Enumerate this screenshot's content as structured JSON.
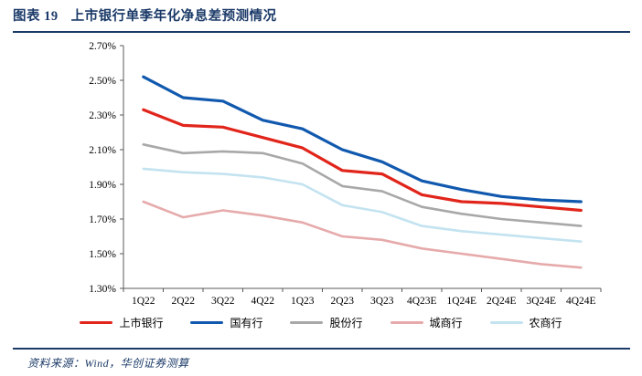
{
  "title": {
    "label": "图表 19",
    "text": "上市银行单季年化净息差预测情况"
  },
  "source_note": "资料来源：Wind，华创证券测算",
  "colors": {
    "accent_navy": "#1b3a68",
    "axis": "#595959",
    "tick_text": "#000000"
  },
  "chart_data": {
    "type": "line",
    "title": "上市银行单季年化净息差预测情况",
    "categories": [
      "1Q22",
      "2Q22",
      "3Q22",
      "4Q22",
      "1Q23",
      "2Q23",
      "3Q23",
      "4Q23E",
      "1Q24E",
      "2Q24E",
      "3Q24E",
      "4Q24E"
    ],
    "series": [
      {
        "name": "上市银行",
        "color": "#e1251b",
        "stroke_width": 3.2,
        "values": [
          2.33,
          2.24,
          2.23,
          2.17,
          2.11,
          1.98,
          1.96,
          1.84,
          1.8,
          1.79,
          1.77,
          1.75
        ]
      },
      {
        "name": "国有行",
        "color": "#1159ae",
        "stroke_width": 3.2,
        "values": [
          2.52,
          2.4,
          2.38,
          2.27,
          2.22,
          2.1,
          2.03,
          1.92,
          1.87,
          1.83,
          1.81,
          1.8
        ]
      },
      {
        "name": "股份行",
        "color": "#a8a8a8",
        "stroke_width": 2.6,
        "values": [
          2.13,
          2.08,
          2.09,
          2.08,
          2.02,
          1.89,
          1.86,
          1.77,
          1.73,
          1.7,
          1.68,
          1.66
        ]
      },
      {
        "name": "城商行",
        "color": "#e6aaab",
        "stroke_width": 2.6,
        "values": [
          1.8,
          1.71,
          1.75,
          1.72,
          1.68,
          1.6,
          1.58,
          1.53,
          1.5,
          1.47,
          1.44,
          1.42
        ]
      },
      {
        "name": "农商行",
        "color": "#c3e3f0",
        "stroke_width": 2.6,
        "values": [
          1.99,
          1.97,
          1.96,
          1.94,
          1.9,
          1.78,
          1.74,
          1.66,
          1.63,
          1.61,
          1.59,
          1.57
        ]
      }
    ],
    "draw_order": [
      4,
      3,
      2,
      0,
      1
    ],
    "ylim": [
      1.3,
      2.7
    ],
    "ytick_step": 0.2,
    "yticks": [
      "2.70%",
      "2.50%",
      "2.30%",
      "2.10%",
      "1.90%",
      "1.70%",
      "1.50%",
      "1.30%"
    ],
    "xlabel": "",
    "ylabel": "",
    "grid": false,
    "legend_position": "bottom"
  }
}
